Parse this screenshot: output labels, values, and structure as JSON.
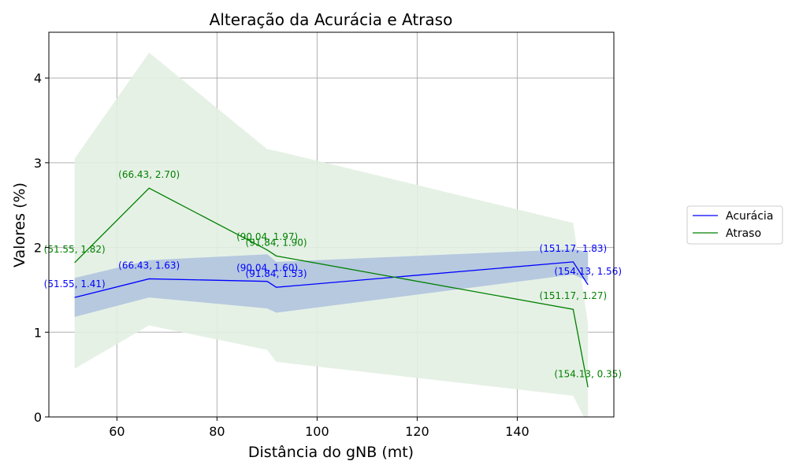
{
  "chart_data": {
    "type": "line",
    "title": "Alteração da Acurácia e Atraso",
    "xlabel": "Distância do gNB (mt)",
    "ylabel": "Valores (%)",
    "xlim": [
      46.4,
      159.3
    ],
    "ylim": [
      0,
      4.54
    ],
    "xticks": [
      60,
      80,
      100,
      120,
      140
    ],
    "yticks": [
      0,
      1,
      2,
      3,
      4
    ],
    "grid": true,
    "legend_position": "right",
    "x": [
      51.55,
      66.43,
      90.04,
      91.84,
      151.17,
      154.13
    ],
    "series": [
      {
        "name": "Acurácia",
        "color": "#0000ff",
        "band_color": "#b0c4de",
        "values": [
          1.41,
          1.63,
          1.6,
          1.53,
          1.83,
          1.56
        ],
        "band_lower": [
          1.18,
          1.41,
          1.28,
          1.23,
          1.68,
          1.6
        ],
        "band_upper": [
          1.64,
          1.85,
          1.92,
          1.83,
          1.98,
          1.95
        ],
        "labels": [
          "(51.55, 1.41)",
          "(66.43, 1.63)",
          "(90.04, 1.60)",
          "(91.84, 1.53)",
          "(151.17, 1.83)",
          "(154.13, 1.56)"
        ]
      },
      {
        "name": "Atraso",
        "color": "#008000",
        "band_color": "#e3f0e3",
        "values": [
          1.82,
          2.7,
          1.97,
          1.9,
          1.27,
          0.35
        ],
        "band_lower": [
          0.57,
          1.08,
          0.79,
          0.65,
          0.25,
          -0.1
        ],
        "band_upper": [
          3.05,
          4.3,
          3.16,
          3.14,
          2.29,
          1.1
        ],
        "labels": [
          "(51.55, 1.82)",
          "(66.43, 2.70)",
          "(90.04, 1.97)",
          "(91.84, 1.90)",
          "(151.17, 1.27)",
          "(154.13, 0.35)"
        ]
      }
    ]
  }
}
